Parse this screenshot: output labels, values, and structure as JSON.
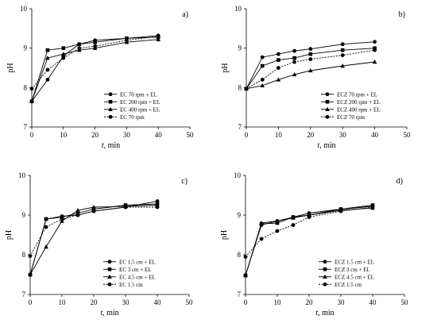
{
  "chart_data": [
    {
      "type": "line",
      "panel_letter": "a)",
      "xlabel_italic": "t",
      "xlabel_rest": ", min",
      "ylabel": "pH",
      "xlim": [
        0,
        50
      ],
      "ylim": [
        7,
        10
      ],
      "xticks": [
        0,
        10,
        20,
        30,
        40,
        50
      ],
      "yticks": [
        7,
        8,
        9,
        10
      ],
      "legend_position": "bottom-right",
      "series": [
        {
          "name": "EC 70 rpm + EL",
          "marker": "circle",
          "dash": false,
          "x": [
            0,
            5,
            10,
            15,
            20,
            30,
            40
          ],
          "y": [
            7.65,
            8.2,
            8.8,
            9.1,
            9.2,
            9.25,
            9.32
          ]
        },
        {
          "name": "EC 200 rpm + EL",
          "marker": "square",
          "dash": false,
          "x": [
            0,
            5,
            10,
            15,
            20,
            30,
            40
          ],
          "y": [
            7.65,
            8.95,
            9.0,
            9.1,
            9.15,
            9.25,
            9.28
          ]
        },
        {
          "name": "EC 400 rpm + EL",
          "marker": "triangle",
          "dash": false,
          "x": [
            0,
            5,
            10,
            15,
            20,
            30,
            40
          ],
          "y": [
            7.65,
            8.75,
            8.85,
            8.95,
            9.0,
            9.15,
            9.22
          ]
        },
        {
          "name": "EC 70 rpm",
          "marker": "circle",
          "dash": true,
          "x": [
            0,
            5,
            10,
            15,
            20,
            30,
            40
          ],
          "y": [
            7.97,
            8.45,
            8.75,
            9.0,
            9.05,
            9.2,
            9.3
          ]
        }
      ]
    },
    {
      "type": "line",
      "panel_letter": "b)",
      "xlabel_italic": "t",
      "xlabel_rest": ", min",
      "ylabel": "pH",
      "xlim": [
        0,
        50
      ],
      "ylim": [
        7,
        10
      ],
      "xticks": [
        0,
        10,
        20,
        30,
        40,
        50
      ],
      "yticks": [
        7,
        8,
        9,
        10
      ],
      "legend_position": "bottom-right",
      "series": [
        {
          "name": "ECZ 70 rpm + EL",
          "marker": "circle",
          "dash": false,
          "x": [
            0,
            5,
            10,
            15,
            20,
            30,
            40
          ],
          "y": [
            7.97,
            8.77,
            8.85,
            8.93,
            8.98,
            9.1,
            9.16
          ]
        },
        {
          "name": "ECZ 200 rpm + EL",
          "marker": "square",
          "dash": false,
          "x": [
            0,
            5,
            10,
            15,
            20,
            30,
            40
          ],
          "y": [
            7.97,
            8.55,
            8.7,
            8.75,
            8.85,
            8.95,
            9.0
          ]
        },
        {
          "name": "ECZ 400 rpm + EL",
          "marker": "triangle",
          "dash": false,
          "x": [
            0,
            5,
            10,
            15,
            20,
            30,
            40
          ],
          "y": [
            7.97,
            8.05,
            8.2,
            8.33,
            8.43,
            8.55,
            8.65
          ]
        },
        {
          "name": "ECZ 70 rpm",
          "marker": "circle",
          "dash": true,
          "x": [
            0,
            5,
            10,
            15,
            20,
            30,
            40
          ],
          "y": [
            7.97,
            8.2,
            8.5,
            8.65,
            8.72,
            8.82,
            8.95
          ]
        }
      ]
    },
    {
      "type": "line",
      "panel_letter": "c)",
      "xlabel_italic": "t",
      "xlabel_rest": ", min",
      "ylabel": "pH",
      "xlim": [
        0,
        50
      ],
      "ylim": [
        7,
        10
      ],
      "xticks": [
        0,
        10,
        20,
        30,
        40,
        50
      ],
      "yticks": [
        7,
        8,
        9,
        10
      ],
      "legend_position": "bottom-right",
      "series": [
        {
          "name": "EC 1.5 cm + EL",
          "marker": "circle",
          "dash": false,
          "x": [
            0,
            5,
            10,
            15,
            20,
            30,
            40
          ],
          "y": [
            7.5,
            8.9,
            8.97,
            9.0,
            9.1,
            9.2,
            9.35
          ]
        },
        {
          "name": "EC 3 cm + EL",
          "marker": "square",
          "dash": false,
          "x": [
            0,
            5,
            10,
            15,
            20,
            30,
            40
          ],
          "y": [
            7.5,
            8.9,
            8.95,
            9.05,
            9.15,
            9.25,
            9.28
          ]
        },
        {
          "name": "EC 4.5 cm + EL",
          "marker": "triangle",
          "dash": false,
          "x": [
            0,
            5,
            10,
            15,
            20,
            30,
            40
          ],
          "y": [
            7.5,
            8.2,
            8.85,
            9.12,
            9.2,
            9.22,
            9.25
          ]
        },
        {
          "name": "EC 1.5 cm",
          "marker": "circle",
          "dash": true,
          "x": [
            0,
            5,
            10,
            15,
            20,
            30,
            40
          ],
          "y": [
            7.97,
            8.7,
            8.9,
            9.0,
            9.1,
            9.2,
            9.2
          ]
        }
      ]
    },
    {
      "type": "line",
      "panel_letter": "d)",
      "xlabel_italic": "t",
      "xlabel_rest": ", min",
      "ylabel": "pH",
      "xlim": [
        0,
        50
      ],
      "ylim": [
        7,
        10
      ],
      "xticks": [
        0,
        10,
        20,
        30,
        40,
        50
      ],
      "yticks": [
        7,
        8,
        9,
        10
      ],
      "legend_position": "bottom-right",
      "series": [
        {
          "name": "ECZ 1.5 cm + EL",
          "marker": "circle",
          "dash": false,
          "x": [
            0,
            5,
            10,
            15,
            20,
            30,
            40
          ],
          "y": [
            7.48,
            8.75,
            8.85,
            8.95,
            9.05,
            9.15,
            9.22
          ]
        },
        {
          "name": "ECZ 3 cm + EL",
          "marker": "square",
          "dash": false,
          "x": [
            0,
            5,
            10,
            15,
            20,
            30,
            40
          ],
          "y": [
            7.48,
            8.78,
            8.8,
            8.95,
            9.0,
            9.15,
            9.25
          ]
        },
        {
          "name": "ECZ 4.5 cm + EL",
          "marker": "triangle",
          "dash": false,
          "x": [
            0,
            5,
            10,
            15,
            20,
            30,
            40
          ],
          "y": [
            7.48,
            8.8,
            8.85,
            8.93,
            9.0,
            9.12,
            9.18
          ]
        },
        {
          "name": "ECZ 1.5 cm",
          "marker": "circle",
          "dash": true,
          "x": [
            0,
            5,
            10,
            15,
            20,
            30,
            40
          ],
          "y": [
            7.95,
            8.4,
            8.6,
            8.75,
            8.95,
            9.1,
            9.2
          ]
        }
      ]
    }
  ]
}
